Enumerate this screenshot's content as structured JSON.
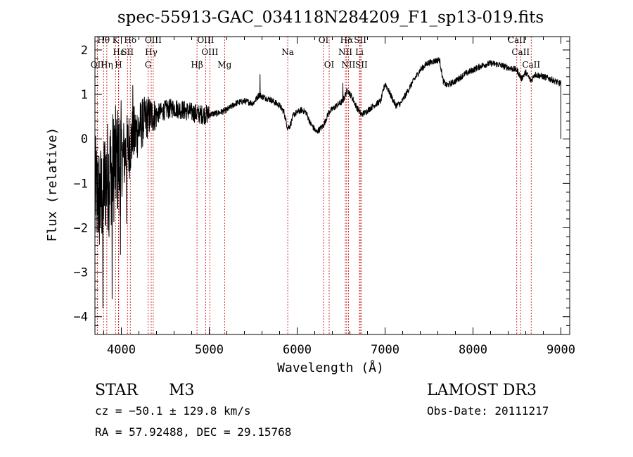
{
  "chart_data": {
    "type": "line",
    "title": "spec-55913-GAC_034118N284209_F1_sp13-019.fits",
    "xlabel": "Wavelength (Å)",
    "ylabel": "Flux (relative)",
    "xlim": [
      3700,
      9100
    ],
    "ylim": [
      -4.4,
      2.3
    ],
    "x_ticks": [
      4000,
      5000,
      6000,
      7000,
      8000,
      9000
    ],
    "y_ticks": [
      -4,
      -3,
      -2,
      -1,
      0,
      1,
      2
    ],
    "spectrum_anchors": [
      [
        3700,
        -1.2
      ],
      [
        3760,
        -1.4
      ],
      [
        3820,
        -0.9
      ],
      [
        3880,
        -0.7
      ],
      [
        3950,
        -0.5
      ],
      [
        4020,
        -0.4
      ],
      [
        4100,
        -0.1
      ],
      [
        4200,
        0.25
      ],
      [
        4300,
        0.5
      ],
      [
        4400,
        0.55
      ],
      [
        4500,
        0.65
      ],
      [
        4600,
        0.7
      ],
      [
        4700,
        0.65
      ],
      [
        4800,
        0.6
      ],
      [
        4900,
        0.55
      ],
      [
        5000,
        0.55
      ],
      [
        5100,
        0.58
      ],
      [
        5200,
        0.65
      ],
      [
        5300,
        0.8
      ],
      [
        5400,
        0.85
      ],
      [
        5500,
        0.8
      ],
      [
        5570,
        1.0
      ],
      [
        5600,
        0.95
      ],
      [
        5700,
        0.88
      ],
      [
        5800,
        0.75
      ],
      [
        5850,
        0.6
      ],
      [
        5890,
        0.25
      ],
      [
        5920,
        0.3
      ],
      [
        5960,
        0.55
      ],
      [
        6050,
        0.65
      ],
      [
        6100,
        0.6
      ],
      [
        6150,
        0.35
      ],
      [
        6220,
        0.15
      ],
      [
        6300,
        0.3
      ],
      [
        6360,
        0.6
      ],
      [
        6450,
        0.75
      ],
      [
        6520,
        0.85
      ],
      [
        6570,
        1.1
      ],
      [
        6620,
        0.95
      ],
      [
        6680,
        0.7
      ],
      [
        6730,
        0.55
      ],
      [
        6780,
        0.6
      ],
      [
        6850,
        0.72
      ],
      [
        6950,
        0.85
      ],
      [
        7000,
        1.25
      ],
      [
        7060,
        1.0
      ],
      [
        7120,
        0.75
      ],
      [
        7180,
        0.8
      ],
      [
        7250,
        1.05
      ],
      [
        7320,
        1.3
      ],
      [
        7400,
        1.55
      ],
      [
        7480,
        1.7
      ],
      [
        7560,
        1.75
      ],
      [
        7620,
        1.78
      ],
      [
        7660,
        1.3
      ],
      [
        7700,
        1.2
      ],
      [
        7800,
        1.3
      ],
      [
        7900,
        1.45
      ],
      [
        8000,
        1.55
      ],
      [
        8100,
        1.65
      ],
      [
        8200,
        1.7
      ],
      [
        8300,
        1.67
      ],
      [
        8400,
        1.6
      ],
      [
        8500,
        1.55
      ],
      [
        8550,
        1.35
      ],
      [
        8600,
        1.5
      ],
      [
        8660,
        1.3
      ],
      [
        8700,
        1.45
      ],
      [
        8800,
        1.4
      ],
      [
        8900,
        1.33
      ],
      [
        8980,
        1.25
      ],
      [
        9000,
        1.25
      ]
    ],
    "spectrum_spikes": [
      [
        3790,
        -3.8
      ],
      [
        3860,
        -2.2
      ],
      [
        3895,
        -3.6
      ],
      [
        3920,
        0.3
      ],
      [
        3990,
        -2.6
      ],
      [
        4060,
        -1.9
      ],
      [
        4130,
        1.2
      ],
      [
        5578,
        1.45
      ],
      [
        6520,
        1.25
      ],
      [
        7600,
        1.8
      ]
    ],
    "terminal_drop": [
      9000,
      0.0
    ],
    "lines": [
      {
        "label": "Hθ",
        "wl": 3798,
        "row": 1
      },
      {
        "label": "K",
        "wl": 3934,
        "row": 1
      },
      {
        "label": "Hδ",
        "wl": 4102,
        "row": 1
      },
      {
        "label": "OIII",
        "wl": 4363,
        "row": 1
      },
      {
        "label": "OIII",
        "wl": 4959,
        "row": 1
      },
      {
        "label": "OI",
        "wl": 6300,
        "row": 1
      },
      {
        "label": "Hα",
        "wl": 6563,
        "row": 1
      },
      {
        "label": "SII",
        "wl": 6717,
        "row": 1
      },
      {
        "label": "CaII",
        "wl": 8498,
        "row": 1
      },
      {
        "label": "Hε",
        "wl": 3970,
        "row": 2
      },
      {
        "label": "SII",
        "wl": 4070,
        "row": 2
      },
      {
        "label": "Hγ",
        "wl": 4340,
        "row": 2
      },
      {
        "label": "OIII",
        "wl": 5007,
        "row": 2
      },
      {
        "label": "Na",
        "wl": 5893,
        "row": 2
      },
      {
        "label": "NII",
        "wl": 6548,
        "row": 2
      },
      {
        "label": "Li",
        "wl": 6708,
        "row": 2
      },
      {
        "label": "CaII",
        "wl": 8542,
        "row": 2
      },
      {
        "label": "OII",
        "wl": 3727,
        "row": 3
      },
      {
        "label": "Hη",
        "wl": 3835,
        "row": 3
      },
      {
        "label": "H",
        "wl": 3968,
        "row": 3
      },
      {
        "label": "G",
        "wl": 4304,
        "row": 3
      },
      {
        "label": "Hβ",
        "wl": 4861,
        "row": 3
      },
      {
        "label": "Mg",
        "wl": 5175,
        "row": 3
      },
      {
        "label": "OI",
        "wl": 6364,
        "row": 3
      },
      {
        "label": "NII",
        "wl": 6583,
        "row": 3
      },
      {
        "label": "SII",
        "wl": 6731,
        "row": 3
      },
      {
        "label": "CaII",
        "wl": 8662,
        "row": 3
      }
    ],
    "line_color": "#cc0000",
    "spectrum_color": "#000000"
  },
  "info": {
    "object_class": "STAR",
    "subclass": "M3",
    "survey": "LAMOST DR3",
    "cz": "cz = −50.1 ± 129.8 km/s",
    "obs_date": "Obs-Date: 20111217",
    "radec": "RA =  57.92488, DEC =  29.15768"
  }
}
